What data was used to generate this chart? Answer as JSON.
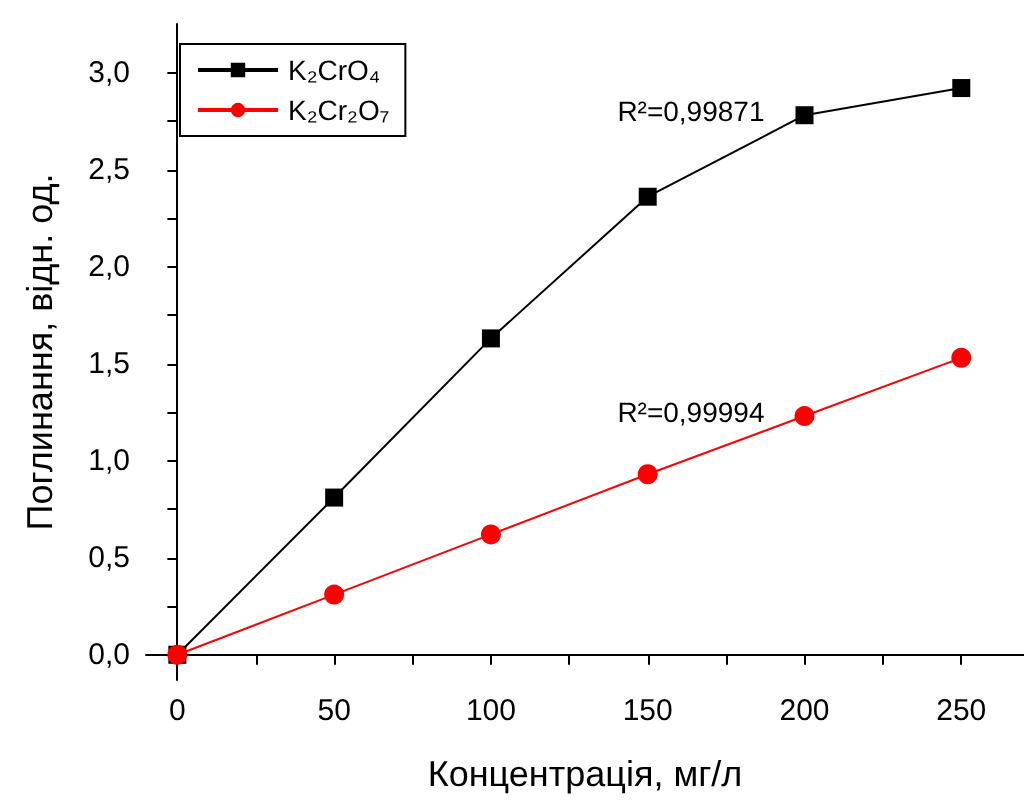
{
  "chart_data": {
    "type": "line",
    "xlabel": "Концентрація, мг/л",
    "ylabel": "Поглинання, відн. од.",
    "x": [
      0,
      50,
      100,
      150,
      200,
      250
    ],
    "series": [
      {
        "name": "K₂CrO₄",
        "color": "#000000",
        "marker": "square",
        "values": [
          0,
          0.81,
          1.63,
          2.36,
          2.78,
          2.92
        ]
      },
      {
        "name": "K₂Cr₂O₇",
        "color": "#ff0000",
        "marker": "circle",
        "values": [
          0,
          0.31,
          0.62,
          0.93,
          1.23,
          1.53
        ]
      }
    ],
    "annotations": [
      "R²=0,99871",
      "R²=0,99994"
    ],
    "xlim": [
      -10,
      270
    ],
    "xticks": [
      0,
      {
        "value": 25,
        "label": null
      },
      50,
      {
        "value": 75,
        "label": null
      },
      100,
      {
        "value": 125,
        "label": null
      },
      150,
      {
        "value": 175,
        "label": null
      },
      200,
      {
        "value": 225,
        "label": null
      },
      250
    ],
    "ylim": [
      -0.13,
      3.25
    ],
    "yticks": [
      {
        "value": 0,
        "label": "0,0"
      },
      {
        "value": 0.25,
        "label": null
      },
      {
        "value": 0.5,
        "label": "0,5"
      },
      {
        "value": 0.75,
        "label": null
      },
      {
        "value": 1,
        "label": "1,0"
      },
      {
        "value": 1.25,
        "label": null
      },
      {
        "value": 1.5,
        "label": "1,5"
      },
      {
        "value": 1.75,
        "label": null
      },
      {
        "value": 2,
        "label": "2,0"
      },
      {
        "value": 2.25,
        "label": null
      },
      {
        "value": 2.5,
        "label": "2,5"
      },
      {
        "value": 2.75,
        "label": null
      },
      {
        "value": 3,
        "label": "3,0"
      }
    ],
    "grid": false,
    "legend": "top left"
  }
}
